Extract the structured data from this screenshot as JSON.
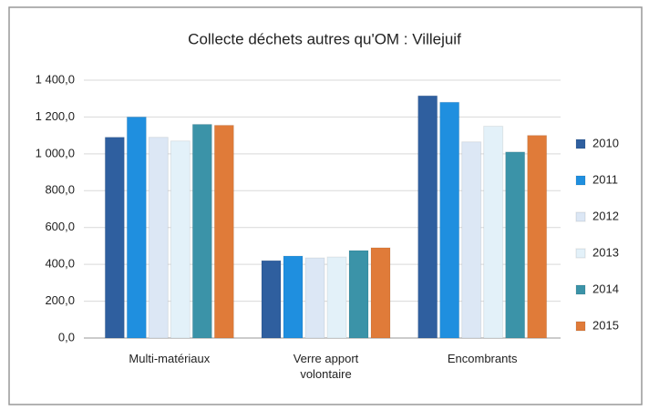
{
  "chart_data": {
    "type": "bar",
    "title": "Collecte déchets autres qu'OM : Villejuif",
    "categories": [
      "Multi-matériaux",
      "Verre apport volontaire",
      "Encombrants"
    ],
    "series": [
      {
        "name": "2010",
        "color": "#2f5f9f",
        "values": [
          1090,
          420,
          1315
        ]
      },
      {
        "name": "2011",
        "color": "#1f8fdf",
        "values": [
          1200,
          445,
          1280
        ]
      },
      {
        "name": "2012",
        "color": "#dce7f5",
        "values": [
          1090,
          435,
          1065
        ]
      },
      {
        "name": "2013",
        "color": "#e3f1f9",
        "values": [
          1070,
          440,
          1150
        ]
      },
      {
        "name": "2014",
        "color": "#3b93a8",
        "values": [
          1160,
          475,
          1010
        ]
      },
      {
        "name": "2015",
        "color": "#e07b39",
        "values": [
          1155,
          490,
          1100
        ]
      }
    ],
    "ylim": [
      0,
      1400
    ],
    "yticks": [
      {
        "value": 0,
        "label": "0,0"
      },
      {
        "value": 200,
        "label": "200,0"
      },
      {
        "value": 400,
        "label": "400,0"
      },
      {
        "value": 600,
        "label": "600,0"
      },
      {
        "value": 800,
        "label": "800,0"
      },
      {
        "value": 1000,
        "label": "1 000,0"
      },
      {
        "value": 1200,
        "label": "1 200,0"
      },
      {
        "value": 1400,
        "label": "1 400,0"
      }
    ],
    "grid": true,
    "legend": "right"
  }
}
